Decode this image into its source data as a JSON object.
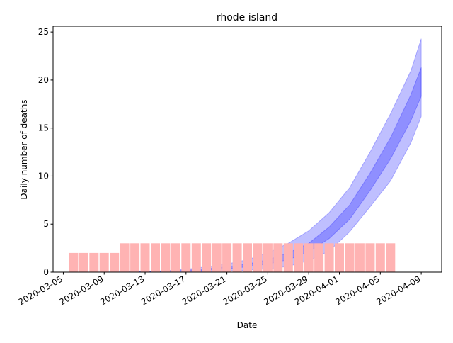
{
  "chart_data": {
    "type": "bar",
    "title": "rhode island",
    "xlabel": "Date",
    "ylabel": "Daily number of deaths",
    "ylim": [
      0,
      25.6
    ],
    "xlim": [
      "2020-03-04",
      "2020-04-11"
    ],
    "x_ticks": [
      "2020-03-05",
      "2020-03-09",
      "2020-03-13",
      "2020-03-17",
      "2020-03-21",
      "2020-03-25",
      "2020-03-29",
      "2020-04-01",
      "2020-04-05",
      "2020-04-09"
    ],
    "y_ticks": [
      0,
      5,
      10,
      15,
      20,
      25
    ],
    "grid": false,
    "bars": {
      "color": "#ffb3b3",
      "dates": [
        "2020-03-06",
        "2020-03-07",
        "2020-03-08",
        "2020-03-09",
        "2020-03-10",
        "2020-03-11",
        "2020-03-12",
        "2020-03-13",
        "2020-03-14",
        "2020-03-15",
        "2020-03-16",
        "2020-03-17",
        "2020-03-18",
        "2020-03-19",
        "2020-03-20",
        "2020-03-21",
        "2020-03-22",
        "2020-03-23",
        "2020-03-24",
        "2020-03-25",
        "2020-03-26",
        "2020-03-27",
        "2020-03-28",
        "2020-03-29",
        "2020-03-30",
        "2020-03-31",
        "2020-04-01",
        "2020-04-02",
        "2020-04-03",
        "2020-04-04",
        "2020-04-05",
        "2020-04-06"
      ],
      "values": [
        2,
        2,
        2,
        2,
        2,
        3,
        3,
        3,
        3,
        3,
        3,
        3,
        3,
        3,
        3,
        3,
        3,
        3,
        3,
        3,
        3,
        3,
        3,
        3,
        3,
        3,
        3,
        3,
        3,
        3,
        3,
        3
      ]
    },
    "bands": {
      "color": "#0000ff",
      "dates": [
        "2020-03-07",
        "2020-03-11",
        "2020-03-13",
        "2020-03-15",
        "2020-03-17",
        "2020-03-19",
        "2020-03-21",
        "2020-03-23",
        "2020-03-25",
        "2020-03-27",
        "2020-03-29",
        "2020-03-31",
        "2020-04-02",
        "2020-04-04",
        "2020-04-06",
        "2020-04-08",
        "2020-04-09"
      ],
      "outer_low": [
        0,
        0,
        0,
        0,
        0.02,
        0.05,
        0.1,
        0.2,
        0.35,
        0.6,
        1.2,
        2.2,
        4.2,
        6.8,
        9.5,
        13.5,
        16.2
      ],
      "inner_low": [
        0,
        0.01,
        0.03,
        0.06,
        0.12,
        0.2,
        0.35,
        0.55,
        0.85,
        1.3,
        2.1,
        3.5,
        5.5,
        8.5,
        11.8,
        15.8,
        18.3
      ],
      "inner_high": [
        0,
        0.02,
        0.05,
        0.1,
        0.2,
        0.35,
        0.55,
        0.85,
        1.3,
        2.0,
        3.0,
        4.7,
        7.0,
        10.3,
        14.0,
        18.5,
        21.3
      ],
      "outer_high": [
        0,
        0.03,
        0.08,
        0.15,
        0.3,
        0.55,
        0.85,
        1.3,
        2.0,
        3.0,
        4.3,
        6.2,
        8.8,
        12.5,
        16.5,
        21.0,
        24.3
      ]
    }
  }
}
